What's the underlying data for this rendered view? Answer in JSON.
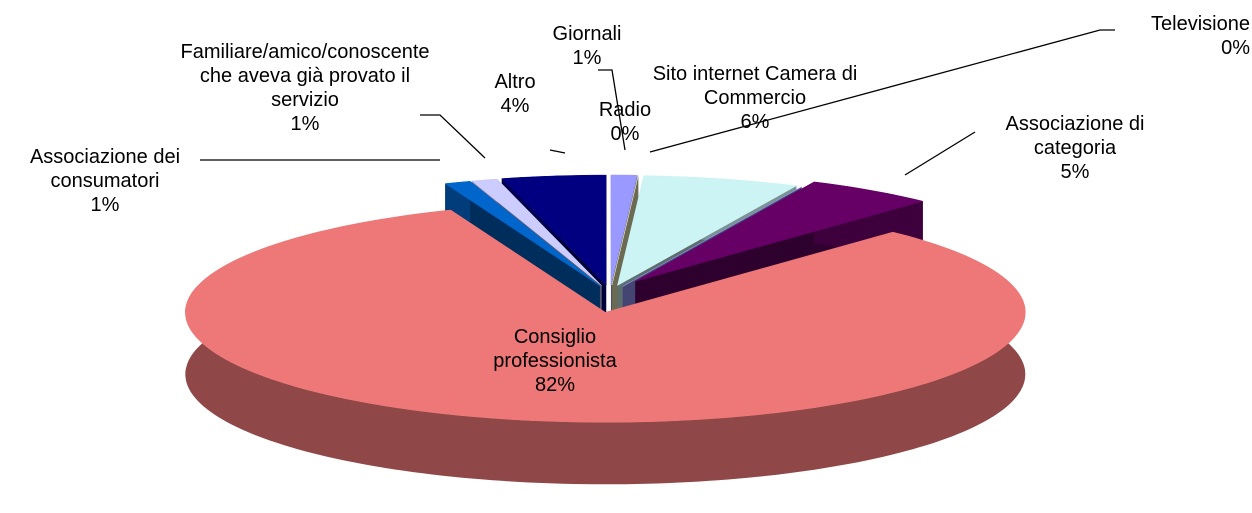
{
  "chart_data": {
    "type": "pie",
    "view": "3d-exploded",
    "categories": [
      "Giornali",
      "Radio",
      "Sito internet Camera di Commercio",
      "Televisione",
      "Associazione di categoria",
      "Consiglio professionista",
      "Associazione dei consumatori",
      "Familiare/amico/conoscente che aveva già provato il servizio",
      "Altro"
    ],
    "values": [
      1,
      0,
      6,
      0,
      5,
      82,
      1,
      1,
      4
    ],
    "value_labels": [
      "1%",
      "0%",
      "6%",
      "0%",
      "5%",
      "82%",
      "1%",
      "1%",
      "4%"
    ],
    "colors": [
      "#9999ff",
      "#eeeebb",
      "#ccf4f4",
      "#9999ff",
      "#660066",
      "#ee7777",
      "#0066cc",
      "#ccccff",
      "#000080"
    ]
  }
}
